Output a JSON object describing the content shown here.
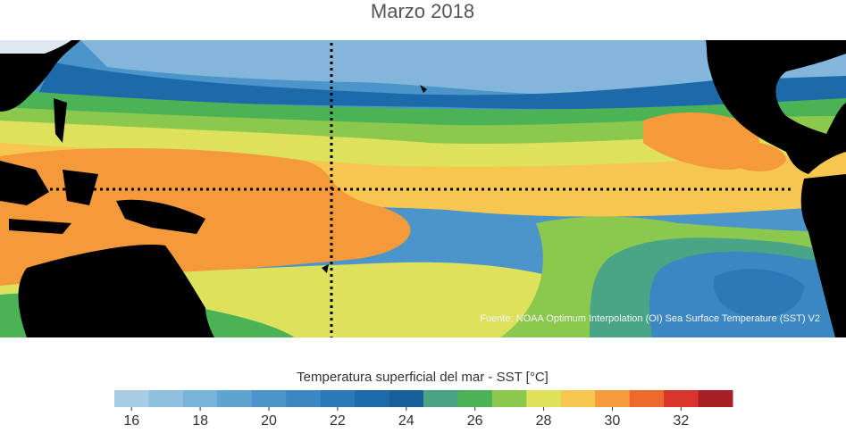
{
  "title": "Marzo 2018",
  "source": "Fuente: NOAA Optimum Interpolation (OI) Sea Surface Temperature (SST) V2",
  "colorbar": {
    "label": "Temperatura superficial del mar - SST  [°C]",
    "clim": [
      15.5,
      33.5
    ],
    "colors": [
      "#a9cde4",
      "#8fc0e0",
      "#76b2da",
      "#5fa3d2",
      "#4b95ca",
      "#3b87c1",
      "#2b79b7",
      "#1d6aaa",
      "#17609a",
      "#4aa586",
      "#4cb256",
      "#8cc84e",
      "#dde15c",
      "#f7c64e",
      "#f49a3b",
      "#ec6a2e",
      "#d9342a",
      "#a71f24"
    ],
    "ticks": [
      16,
      18,
      20,
      22,
      24,
      26,
      28,
      30,
      32
    ]
  }
}
